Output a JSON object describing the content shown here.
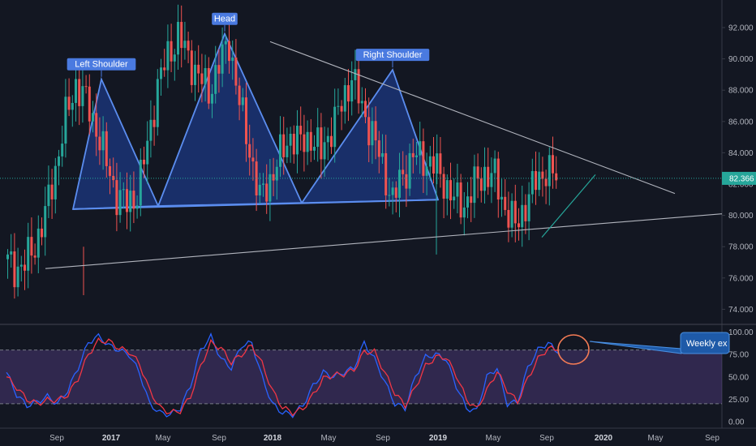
{
  "chart_data": {
    "type": "candlestick",
    "price_axis": {
      "ticks": [
        74,
        76,
        78,
        80,
        82,
        84,
        86,
        88,
        90,
        92
      ],
      "ylim": [
        73,
        93.5
      ]
    },
    "current_price": {
      "value": 82.366,
      "label": "82.366"
    },
    "time_axis": [
      {
        "label": "Sep",
        "bold": false
      },
      {
        "label": "2017",
        "bold": true
      },
      {
        "label": "May",
        "bold": false
      },
      {
        "label": "Sep",
        "bold": false
      },
      {
        "label": "2018",
        "bold": true
      },
      {
        "label": "May",
        "bold": false
      },
      {
        "label": "Sep",
        "bold": false
      },
      {
        "label": "2019",
        "bold": true
      },
      {
        "label": "May",
        "bold": false
      },
      {
        "label": "Sep",
        "bold": false
      },
      {
        "label": "2020",
        "bold": true
      },
      {
        "label": "May",
        "bold": false
      },
      {
        "label": "Sep",
        "bold": false
      }
    ],
    "pattern_labels": [
      {
        "text": "Left Shoulder",
        "price": 88.7
      },
      {
        "text": "Head",
        "price": 91.6
      },
      {
        "text": "Right Shoulder",
        "price": 89.3
      }
    ],
    "close_path": [
      77.2,
      76.6,
      76.9,
      78.1,
      80.0,
      83.0,
      86.2,
      88.4,
      87.3,
      85.6,
      83.3,
      81.3,
      80.7,
      81.4,
      84.5,
      88.3,
      90.2,
      91.5,
      90.1,
      88.9,
      87.9,
      89.6,
      91.1,
      87.2,
      84.2,
      81.0,
      82.3,
      83.8,
      85.1,
      84.6,
      85.0,
      84.0,
      85.6,
      87.0,
      89.0,
      86.8,
      85.3,
      83.1,
      81.0,
      82.6,
      83.8,
      83.6,
      83.2,
      82.2,
      81.0,
      80.7,
      81.9,
      82.7,
      82.4,
      80.5,
      79.3,
      80.7,
      82.2,
      82.9,
      82.4
    ],
    "oscillator": {
      "ticks": [
        0,
        25,
        50,
        75,
        100
      ],
      "ylim": [
        -2,
        104
      ],
      "upper_band": 80,
      "lower_band": 20,
      "k_values": [
        55,
        30,
        18,
        22,
        28,
        20,
        35,
        60,
        88,
        96,
        85,
        80,
        75,
        55,
        20,
        10,
        8,
        15,
        40,
        80,
        95,
        70,
        60,
        85,
        88,
        50,
        20,
        10,
        8,
        18,
        40,
        55,
        50,
        55,
        60,
        88,
        70,
        45,
        20,
        15,
        50,
        72,
        75,
        70,
        40,
        15,
        12,
        50,
        60,
        20,
        22,
        60,
        80,
        88,
        76
      ],
      "d_values": [
        50,
        38,
        25,
        20,
        24,
        24,
        30,
        48,
        75,
        90,
        90,
        82,
        78,
        65,
        35,
        16,
        10,
        12,
        28,
        62,
        88,
        82,
        66,
        75,
        85,
        65,
        35,
        16,
        10,
        14,
        30,
        48,
        52,
        53,
        58,
        78,
        78,
        55,
        32,
        18,
        38,
        62,
        72,
        72,
        52,
        25,
        14,
        35,
        56,
        35,
        22,
        48,
        70,
        82,
        80
      ]
    },
    "annotation": {
      "text": "Weekly ex"
    }
  }
}
